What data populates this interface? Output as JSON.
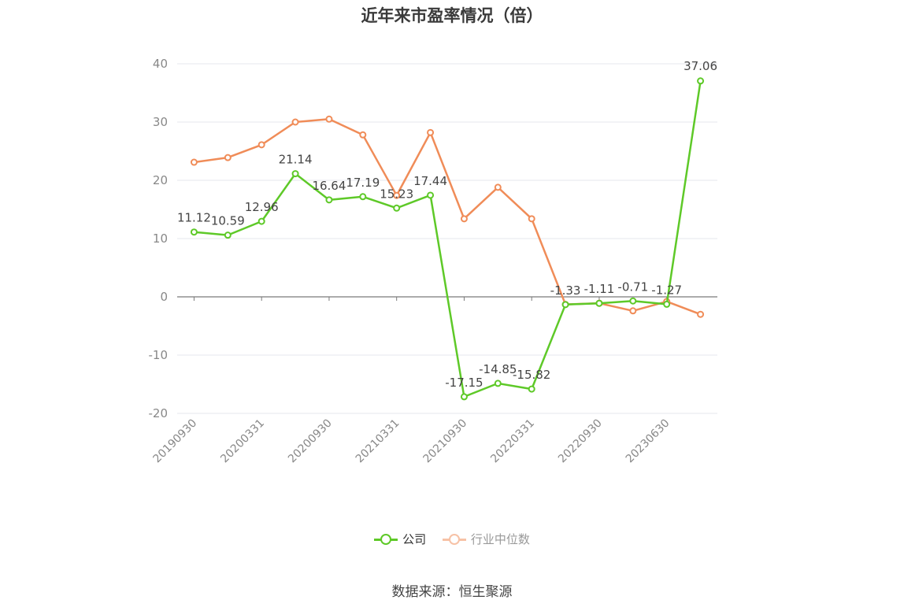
{
  "title": "近年来市盈率情况（倍）",
  "source": "数据来源：恒生聚源",
  "colors": {
    "company": "#5ec928",
    "industry": "#f08c58",
    "grid": "#e4e7ee",
    "axis": "#7a7a7a",
    "tick_text": "#888888",
    "label_text": "#444444"
  },
  "chart_data": {
    "type": "line",
    "title": "近年来市盈率情况（倍）",
    "ylim": [
      -20,
      40
    ],
    "yticks": [
      -20,
      -10,
      0,
      10,
      20,
      30,
      40
    ],
    "x_tick_labels": [
      "20190930",
      "20200331",
      "20200930",
      "20210331",
      "20210930",
      "20220331",
      "20220930",
      "20230630"
    ],
    "grid": true,
    "legend_position": "bottom",
    "series": [
      {
        "name": "公司",
        "values": [
          11.12,
          10.59,
          12.96,
          21.14,
          16.64,
          17.19,
          15.23,
          17.44,
          -17.15,
          -14.85,
          -15.82,
          -1.33,
          -1.11,
          -0.71,
          -1.27,
          37.06
        ],
        "labels": [
          "11.12",
          "10.59",
          "12.96",
          "21.14",
          "16.64",
          "17.19",
          "15.23",
          "17.44",
          "-17.15",
          "-14.85",
          "-15.82",
          "-1.33",
          "-1.11",
          "-0.71",
          "-1.27",
          "37.06"
        ]
      },
      {
        "name": "行业中位数",
        "values": [
          23.1,
          23.9,
          26.1,
          30.0,
          30.5,
          27.8,
          17.4,
          28.2,
          13.4,
          18.8,
          13.4,
          -1.3,
          -1.1,
          -2.4,
          -0.8,
          -3.0
        ]
      }
    ]
  },
  "legend": {
    "company_label": "公司",
    "industry_label": "行业中位数"
  }
}
